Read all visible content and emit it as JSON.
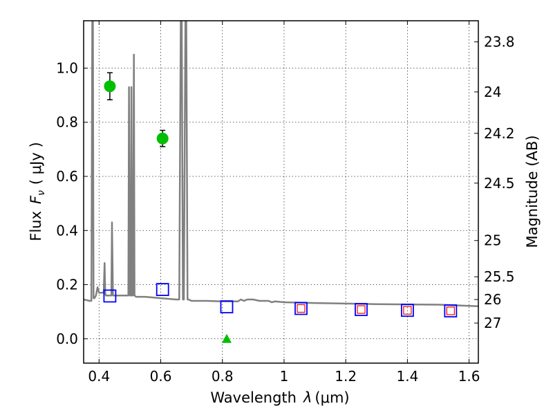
{
  "chart_data": {
    "type": "scatter",
    "xlabel_text": "Wavelength",
    "xlabel_lambda": "λ",
    "xlabel_unit": "(μm)",
    "ylabel_text": "Flux",
    "ylabel_F": "F",
    "ylabel_sub": "ν",
    "ylabel_unit": "( μJy )",
    "y2label": "Magnitude (AB)",
    "xlim": [
      0.35,
      1.63
    ],
    "ylim": [
      -0.09,
      1.175
    ],
    "x_ticks": [
      0.4,
      0.6,
      0.8,
      1.0,
      1.2,
      1.4,
      1.6
    ],
    "x_tick_labels": [
      "0.4",
      "0.6",
      "0.8",
      "1",
      "1.2",
      "1.4",
      "1.6"
    ],
    "y_ticks": [
      0.0,
      0.2,
      0.4,
      0.6,
      0.8,
      1.0
    ],
    "y_tick_labels": [
      "0.0",
      "0.2",
      "0.4",
      "0.6",
      "0.8",
      "1.0"
    ],
    "y2_ticks": [
      {
        "label": "23.8",
        "flux": 1.097
      },
      {
        "label": "24",
        "flux": 0.912
      },
      {
        "label": "24.2",
        "flux": 0.759
      },
      {
        "label": "24.5",
        "flux": 0.575
      },
      {
        "label": "25",
        "flux": 0.363
      },
      {
        "label": "25.5",
        "flux": 0.229
      },
      {
        "label": "26",
        "flux": 0.145
      },
      {
        "label": "27",
        "flux": 0.058
      }
    ],
    "grid": true,
    "model_spectrum": {
      "color": "#808080",
      "x": [
        0.35,
        0.37,
        0.375,
        0.378,
        0.38,
        0.382,
        0.385,
        0.39,
        0.395,
        0.4,
        0.405,
        0.41,
        0.415,
        0.418,
        0.42,
        0.422,
        0.425,
        0.43,
        0.435,
        0.44,
        0.442,
        0.445,
        0.45,
        0.46,
        0.47,
        0.48,
        0.49,
        0.495,
        0.497,
        0.5,
        0.503,
        0.505,
        0.507,
        0.51,
        0.513,
        0.515,
        0.52,
        0.55,
        0.6,
        0.65,
        0.66,
        0.665,
        0.668,
        0.672,
        0.675,
        0.68,
        0.683,
        0.687,
        0.69,
        0.7,
        0.75,
        0.8,
        0.85,
        0.86,
        0.87,
        0.88,
        0.9,
        0.92,
        0.95,
        0.96,
        0.97,
        1.0,
        1.1,
        1.2,
        1.3,
        1.4,
        1.5,
        1.63
      ],
      "flux": [
        0.145,
        0.14,
        0.14,
        1.175,
        1.175,
        0.15,
        0.15,
        0.16,
        0.19,
        0.17,
        0.17,
        0.17,
        0.17,
        0.28,
        0.17,
        0.16,
        0.16,
        0.16,
        0.16,
        0.16,
        0.43,
        0.16,
        0.16,
        0.16,
        0.16,
        0.16,
        0.16,
        0.16,
        0.93,
        0.16,
        0.16,
        0.93,
        0.16,
        0.16,
        1.05,
        0.16,
        0.155,
        0.155,
        0.15,
        0.145,
        0.145,
        1.175,
        1.175,
        0.145,
        0.145,
        1.175,
        1.175,
        0.145,
        0.145,
        0.14,
        0.14,
        0.138,
        0.138,
        0.145,
        0.14,
        0.145,
        0.145,
        0.14,
        0.14,
        0.135,
        0.138,
        0.135,
        0.132,
        0.13,
        0.128,
        0.127,
        0.126,
        0.12
      ]
    },
    "detections": {
      "color": "#00bf00",
      "points": [
        {
          "x": 0.435,
          "y": 0.933,
          "err": 0.05
        },
        {
          "x": 0.606,
          "y": 0.74,
          "err": 0.03
        }
      ]
    },
    "nondetection": {
      "color": "#00bf00",
      "points": [
        {
          "x": 0.814,
          "y": 0.0,
          "err": 0.01
        }
      ]
    },
    "model_photometry": {
      "color": "#0000ff",
      "points": [
        {
          "x": 0.435,
          "y": 0.158
        },
        {
          "x": 0.606,
          "y": 0.182
        },
        {
          "x": 0.814,
          "y": 0.118
        },
        {
          "x": 1.055,
          "y": 0.112
        },
        {
          "x": 1.25,
          "y": 0.108
        },
        {
          "x": 1.4,
          "y": 0.105
        },
        {
          "x": 1.54,
          "y": 0.103
        }
      ]
    },
    "ir_photometry": {
      "color": "#ff0000",
      "points": [
        {
          "x": 1.055,
          "y": 0.112
        },
        {
          "x": 1.25,
          "y": 0.108
        },
        {
          "x": 1.4,
          "y": 0.105
        },
        {
          "x": 1.54,
          "y": 0.103
        }
      ]
    }
  }
}
